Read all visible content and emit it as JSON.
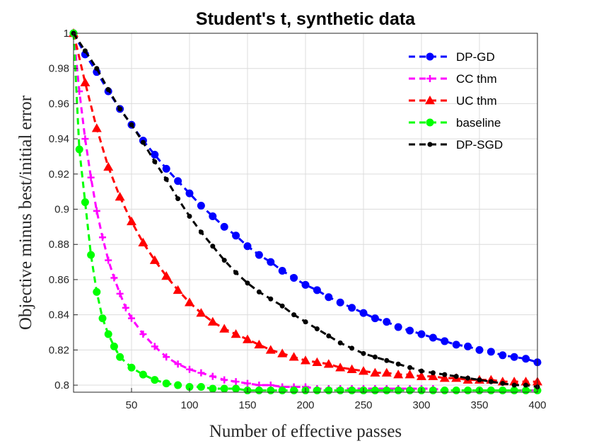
{
  "chart_data": {
    "type": "line",
    "title": "Student's t, synthetic data",
    "xlabel": "Number of effective passes",
    "ylabel": "Objective minus best/initial error",
    "xlim": [
      0,
      400
    ],
    "ylim": [
      0.796,
      1.0
    ],
    "xticks": [
      50,
      100,
      150,
      200,
      250,
      300,
      350,
      400
    ],
    "xtick_labels": [
      "50",
      "100",
      "150",
      "200",
      "250",
      "300",
      "350",
      "400"
    ],
    "yticks": [
      0.8,
      0.82,
      0.84,
      0.86,
      0.88,
      0.9,
      0.92,
      0.94,
      0.96,
      0.98,
      1.0
    ],
    "ytick_labels": [
      "0.8",
      "0.82",
      "0.84",
      "0.86",
      "0.88",
      "0.9",
      "0.92",
      "0.94",
      "0.96",
      "0.98",
      "1"
    ],
    "grid": true,
    "legend_position": "top-right",
    "series": [
      {
        "name": "DP-GD",
        "color": "#0000ff",
        "marker": "circle",
        "x": [
          0,
          10,
          20,
          30,
          40,
          50,
          60,
          70,
          80,
          90,
          100,
          110,
          120,
          130,
          140,
          150,
          160,
          170,
          180,
          190,
          200,
          210,
          220,
          230,
          240,
          250,
          260,
          270,
          280,
          290,
          300,
          310,
          320,
          330,
          340,
          350,
          360,
          370,
          380,
          390,
          400
        ],
        "values": [
          1.0,
          0.988,
          0.978,
          0.967,
          0.957,
          0.948,
          0.939,
          0.931,
          0.923,
          0.916,
          0.909,
          0.902,
          0.896,
          0.89,
          0.885,
          0.879,
          0.874,
          0.87,
          0.865,
          0.861,
          0.857,
          0.854,
          0.85,
          0.847,
          0.844,
          0.841,
          0.838,
          0.836,
          0.833,
          0.831,
          0.829,
          0.827,
          0.825,
          0.823,
          0.822,
          0.82,
          0.819,
          0.817,
          0.816,
          0.815,
          0.813
        ]
      },
      {
        "name": "CC thm",
        "color": "#ff00ff",
        "marker": "plus",
        "x": [
          0,
          5,
          10,
          15,
          20,
          25,
          30,
          35,
          40,
          45,
          50,
          60,
          70,
          80,
          90,
          100,
          110,
          120,
          130,
          140,
          150,
          160,
          170,
          180,
          190,
          200,
          210,
          220,
          230,
          240,
          250,
          260,
          270,
          280,
          290,
          300,
          310,
          320,
          330,
          340,
          350,
          360,
          370,
          380,
          390,
          400
        ],
        "values": [
          1.0,
          0.967,
          0.94,
          0.918,
          0.899,
          0.884,
          0.871,
          0.861,
          0.852,
          0.844,
          0.838,
          0.829,
          0.822,
          0.816,
          0.812,
          0.809,
          0.807,
          0.805,
          0.803,
          0.802,
          0.801,
          0.8,
          0.8,
          0.799,
          0.799,
          0.799,
          0.798,
          0.798,
          0.798,
          0.798,
          0.798,
          0.798,
          0.798,
          0.798,
          0.798,
          0.798,
          0.798,
          0.797,
          0.797,
          0.797,
          0.797,
          0.797,
          0.797,
          0.797,
          0.797,
          0.797
        ]
      },
      {
        "name": "UC thm",
        "color": "#ff0000",
        "marker": "triangle",
        "x": [
          0,
          10,
          20,
          30,
          40,
          50,
          60,
          70,
          80,
          90,
          100,
          110,
          120,
          130,
          140,
          150,
          160,
          170,
          180,
          190,
          200,
          210,
          220,
          230,
          240,
          250,
          260,
          270,
          280,
          290,
          300,
          310,
          320,
          330,
          340,
          350,
          360,
          370,
          380,
          390,
          400
        ],
        "values": [
          1.0,
          0.972,
          0.946,
          0.924,
          0.907,
          0.893,
          0.881,
          0.871,
          0.862,
          0.854,
          0.847,
          0.841,
          0.836,
          0.832,
          0.829,
          0.826,
          0.823,
          0.82,
          0.818,
          0.816,
          0.814,
          0.813,
          0.812,
          0.81,
          0.809,
          0.808,
          0.807,
          0.807,
          0.806,
          0.806,
          0.805,
          0.805,
          0.804,
          0.804,
          0.803,
          0.803,
          0.803,
          0.802,
          0.802,
          0.802,
          0.802
        ]
      },
      {
        "name": "baseline",
        "color": "#00ff00",
        "marker": "circle",
        "x": [
          0,
          5,
          10,
          15,
          20,
          25,
          30,
          35,
          40,
          50,
          60,
          70,
          80,
          90,
          100,
          110,
          120,
          130,
          140,
          150,
          160,
          170,
          180,
          190,
          200,
          210,
          220,
          230,
          240,
          250,
          260,
          270,
          280,
          290,
          300,
          310,
          320,
          330,
          340,
          350,
          360,
          370,
          380,
          390,
          400
        ],
        "values": [
          1.0,
          0.934,
          0.904,
          0.874,
          0.853,
          0.838,
          0.829,
          0.822,
          0.816,
          0.81,
          0.806,
          0.803,
          0.801,
          0.8,
          0.799,
          0.799,
          0.798,
          0.798,
          0.798,
          0.797,
          0.797,
          0.797,
          0.797,
          0.797,
          0.797,
          0.797,
          0.797,
          0.797,
          0.797,
          0.797,
          0.797,
          0.797,
          0.797,
          0.797,
          0.797,
          0.797,
          0.797,
          0.797,
          0.797,
          0.797,
          0.797,
          0.797,
          0.797,
          0.797,
          0.797
        ]
      },
      {
        "name": "DP-SGD",
        "color": "#000000",
        "marker": "dot",
        "x": [
          0,
          10,
          20,
          30,
          40,
          50,
          60,
          70,
          80,
          90,
          100,
          110,
          120,
          130,
          140,
          150,
          160,
          170,
          180,
          190,
          200,
          210,
          220,
          230,
          240,
          250,
          260,
          270,
          280,
          290,
          300,
          310,
          320,
          330,
          340,
          350,
          360,
          370,
          380,
          390,
          400
        ],
        "values": [
          1.0,
          0.99,
          0.98,
          0.968,
          0.957,
          0.948,
          0.938,
          0.927,
          0.917,
          0.906,
          0.896,
          0.887,
          0.879,
          0.871,
          0.864,
          0.858,
          0.853,
          0.849,
          0.845,
          0.84,
          0.836,
          0.832,
          0.828,
          0.824,
          0.821,
          0.818,
          0.816,
          0.814,
          0.812,
          0.81,
          0.808,
          0.807,
          0.806,
          0.805,
          0.804,
          0.803,
          0.802,
          0.801,
          0.8,
          0.8,
          0.799
        ]
      }
    ]
  }
}
